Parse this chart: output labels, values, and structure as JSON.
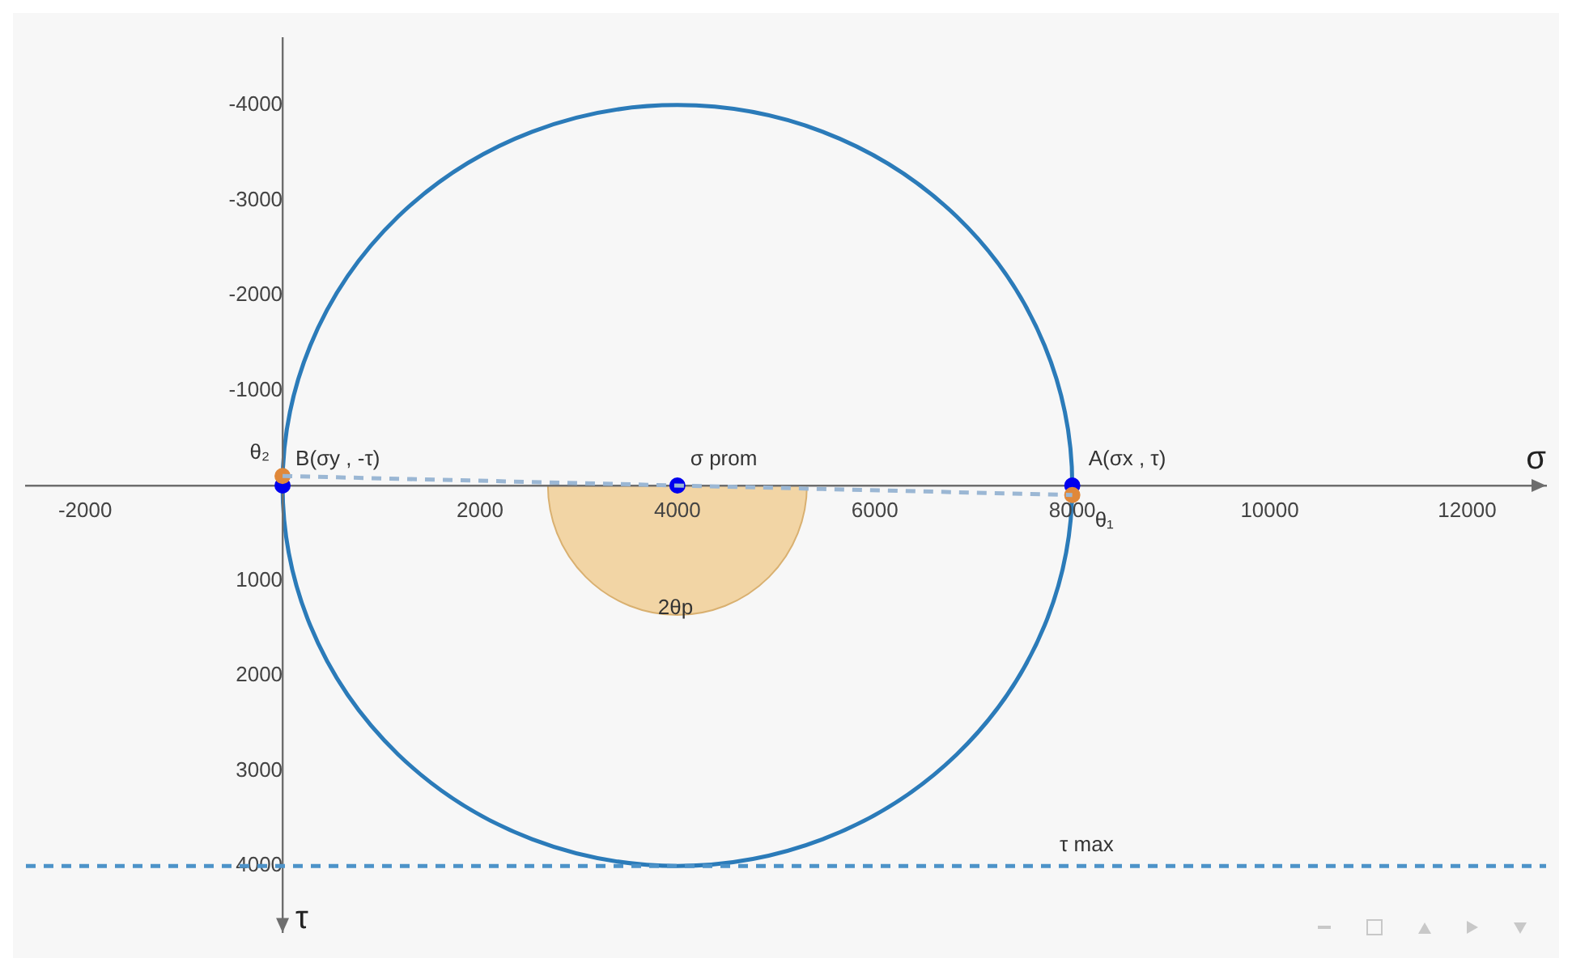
{
  "chart_data": {
    "type": "line",
    "xlabel": "σ",
    "ylabel": "τ",
    "xlim": [
      -2600,
      12800
    ],
    "ylim": [
      4700,
      -4700
    ],
    "xticks": [
      -2000,
      2000,
      4000,
      6000,
      8000,
      10000,
      12000
    ],
    "yticks": [
      -4000,
      -3000,
      -2000,
      -1000,
      1000,
      2000,
      3000,
      4000
    ],
    "grid": false,
    "legend": false,
    "series": [
      {
        "type": "line",
        "color": "#9bb7d4",
        "marker": "none",
        "line_style": "dashed",
        "x": [
          0,
          8000
        ],
        "values": [
          -100,
          100
        ]
      },
      {
        "type": "scatter",
        "color": "#e0883a",
        "marker": "circle",
        "x": [
          0,
          8000
        ],
        "values": [
          -100,
          100
        ]
      },
      {
        "type": "scatter",
        "color": "#0000ee",
        "marker": "circle",
        "x": [
          0,
          4000,
          8000
        ],
        "values": [
          0,
          0,
          0
        ]
      }
    ],
    "ref_lines": [
      {
        "axis": "y",
        "value": 4000,
        "label": "τ max",
        "color": "#4d93c9",
        "line_style": "dashed"
      }
    ],
    "annotations": [
      {
        "text": "B(σy , -τ)",
        "x": 0,
        "y": 0
      },
      {
        "text": "θ₂",
        "x": 0,
        "y": -100
      },
      {
        "text": "σ prom",
        "x": 4000,
        "y": 0
      },
      {
        "text": "A(σx , τ)",
        "x": 8000,
        "y": 0
      },
      {
        "text": "θ₁",
        "x": 8000,
        "y": 100
      },
      "2θp"
    ]
  }
}
